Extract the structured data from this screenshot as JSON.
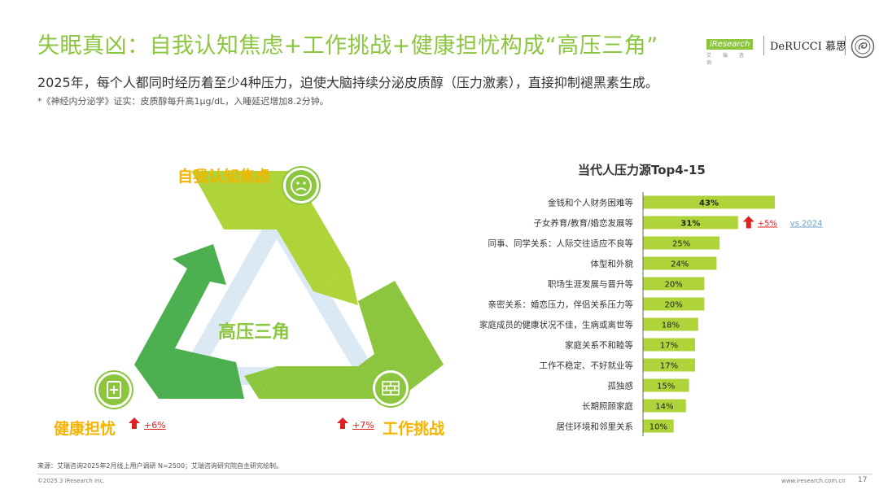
{
  "header": {
    "title": "失眠真凶：自我认知焦虑+工作挑战+健康担忧构成“高压三角”",
    "subtitle": "2025年，每个人都同时经历着至少4种压力，迫使大脑持续分泌皮质醇（压力激素），直接抑制褪黑素生成。",
    "footnote": "*《神经内分泌学》证实：皮质醇每升高1μg/dL，入睡延迟增加8.2分钟。"
  },
  "logos": {
    "iresearch": "iResearch",
    "iresearch_sub": "艾 瑞 咨 询",
    "derucci": "DeRUCCI 慕思"
  },
  "triangle": {
    "center_label": "高压三角",
    "top_label": "自我认知焦虑",
    "left_label": "健康担忧",
    "left_delta": "+6%",
    "right_label": "工作挑战",
    "right_delta": "+7%"
  },
  "colors": {
    "accent": "#8cc63f",
    "label": "#f5b400",
    "up": "#e02020",
    "compare": "#6ba0c0"
  },
  "chart_data": {
    "type": "bar",
    "orientation": "horizontal",
    "title": "当代人压力源Top4-15",
    "categories": [
      "金钱和个人财务困难等",
      "子女养育/教育/婚恋发展等",
      "同事、同学关系：人际交往适应不良等",
      "体型和外貌",
      "职场生涯发展与晋升等",
      "亲密关系：婚恋压力，伴侣关系压力等",
      "家庭成员的健康状况不佳，生病或离世等",
      "家庭关系不和睦等",
      "工作不稳定、不好就业等",
      "孤独感",
      "长期照顾家庭",
      "居住环境和邻里关系"
    ],
    "values": [
      43,
      31,
      25,
      24,
      20,
      20,
      18,
      17,
      17,
      15,
      14,
      10
    ],
    "value_labels": [
      "43%",
      "31%",
      "25%",
      "24%",
      "20%",
      "20%",
      "18%",
      "17%",
      "17%",
      "15%",
      "14%",
      "10%"
    ],
    "annotation": {
      "category_index": 1,
      "delta": "+5%",
      "compare": "vs 2024"
    },
    "xlim": [
      0,
      45
    ]
  },
  "footer": {
    "source": "来源：艾瑞咨询2025年2月线上用户调研 N=2500；艾瑞咨询研究院自主研究绘制。",
    "copyright": "©2025.3 iResearch Inc.",
    "url": "www.iresearch.com.cn",
    "page": "17"
  }
}
